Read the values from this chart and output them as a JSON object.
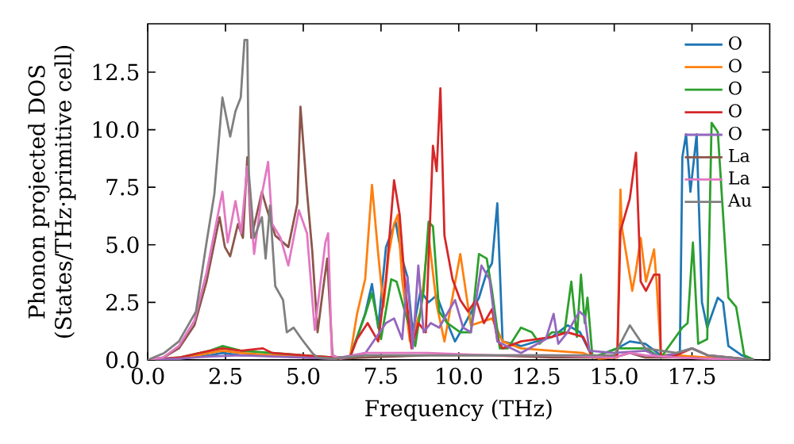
{
  "chart_data": {
    "type": "line",
    "xlabel": "Frequency (THz)",
    "ylabel": "Phonon projected DOS (States/THz·primitive cell)",
    "xlim": [
      0,
      20
    ],
    "ylim": [
      0,
      14.6
    ],
    "xticks": [
      {
        "value": 0,
        "label": "0.0"
      },
      2.5,
      {
        "value": 5,
        "label": "5.0"
      },
      7.5,
      {
        "value": 10,
        "label": "10.0"
      },
      12.5,
      {
        "value": 15,
        "label": "15.0"
      },
      17.5
    ],
    "yticks": [
      {
        "value": 0,
        "label": "0.0"
      },
      2.5,
      {
        "value": 5,
        "label": "5.0"
      },
      7.5,
      {
        "value": 10,
        "label": "10.0"
      },
      12.5
    ],
    "legend": "top right",
    "line_style": "solid",
    "series": [
      {
        "name": "O",
        "color": "#1f77b4",
        "x": [
          0,
          1,
          2,
          2.4,
          3,
          4,
          5,
          5.9,
          6.5,
          6.99,
          7.21,
          7.41,
          7.66,
          7.97,
          8.18,
          8.35,
          8.52,
          8.77,
          9.03,
          9.29,
          9.54,
          9.88,
          10.05,
          10.65,
          10.9,
          11.07,
          11.24,
          11.41,
          12,
          12.5,
          13,
          13.5,
          13.9,
          14.3,
          15.1,
          15.5,
          16,
          16.5,
          17.11,
          17.19,
          17.31,
          17.45,
          17.65,
          17.82,
          17.99,
          18.33,
          18.5,
          18.67,
          19.1,
          19.5
        ],
        "values": [
          0,
          0.05,
          0.2,
          0.3,
          0.2,
          0.2,
          0.1,
          0.05,
          0.1,
          2.0,
          3.3,
          1.4,
          4.9,
          6.0,
          4.4,
          3.6,
          1.2,
          3.0,
          2.5,
          2.8,
          1.9,
          0.8,
          1.2,
          2.7,
          3.8,
          4.2,
          6.8,
          0.8,
          0.6,
          0.8,
          1.0,
          1.5,
          1.2,
          0.1,
          0.5,
          0.8,
          0.7,
          0.2,
          0.25,
          8.8,
          9.8,
          7.3,
          9.8,
          2.5,
          1.4,
          2.7,
          2.5,
          0.6,
          0.2,
          0
        ]
      },
      {
        "name": "O",
        "color": "#ff7f0e",
        "x": [
          0,
          1,
          2,
          2.4,
          3,
          4,
          5,
          6,
          6.5,
          6.73,
          6.99,
          7.21,
          7.41,
          7.58,
          7.75,
          7.92,
          8.04,
          8.18,
          8.43,
          8.77,
          9.03,
          9.29,
          9.54,
          10.05,
          10.39,
          11.07,
          11.41,
          12,
          13,
          14,
          14.5,
          15.1,
          15.2,
          15.24,
          15.58,
          15.7,
          15.85,
          16.02,
          16.28,
          16.36,
          16.5,
          17,
          18,
          19.5
        ],
        "values": [
          0,
          0.05,
          0.3,
          0.4,
          0.3,
          0.2,
          0.1,
          0.05,
          0.1,
          2.0,
          3.5,
          7.6,
          4.6,
          2.3,
          4.6,
          5.9,
          6.3,
          3.5,
          0.8,
          2.1,
          5.4,
          2.4,
          0.8,
          4.6,
          1.5,
          1.8,
          0.8,
          0.5,
          0.4,
          0.3,
          0.05,
          0.1,
          7.4,
          5.8,
          3.0,
          3.9,
          5.3,
          3.4,
          4.8,
          3.4,
          0.2,
          0.2,
          0.1,
          0
        ]
      },
      {
        "name": "O",
        "color": "#2ca02c",
        "x": [
          0,
          1,
          2,
          2.4,
          3,
          4,
          5,
          6,
          6.5,
          7.0,
          7.21,
          7.5,
          7.83,
          8.0,
          8.27,
          8.6,
          8.87,
          9.03,
          9.17,
          9.37,
          9.63,
          10.05,
          10.39,
          10.65,
          10.9,
          11.07,
          11.32,
          11.58,
          12.0,
          12.35,
          12.6,
          13.0,
          13.4,
          13.62,
          13.8,
          13.93,
          14.05,
          14.14,
          14.3,
          15.1,
          16,
          16.5,
          17.19,
          17.36,
          17.53,
          17.7,
          17.99,
          18.13,
          18.33,
          18.67,
          18.92,
          19.18,
          19.5
        ],
        "values": [
          0,
          0.1,
          0.4,
          0.6,
          0.4,
          0.3,
          0.2,
          0.1,
          0.1,
          2.0,
          2.9,
          0.9,
          3.5,
          3.4,
          2.1,
          0.6,
          3.0,
          6.0,
          5.8,
          2.1,
          1.6,
          1.2,
          1.2,
          4.6,
          4.4,
          3.0,
          0.5,
          0.5,
          1.4,
          1.2,
          0.7,
          1.2,
          1.2,
          3.4,
          1.0,
          3.7,
          1.6,
          2.7,
          0.1,
          0.5,
          0.5,
          0.1,
          1.4,
          1.6,
          5.1,
          0.7,
          0.9,
          10.3,
          9.9,
          2.7,
          2.3,
          0.2,
          0
        ]
      },
      {
        "name": "O",
        "color": "#d62728",
        "x": [
          0,
          1,
          2,
          2.4,
          3,
          3.7,
          4,
          5,
          6,
          6.5,
          6.73,
          7.07,
          7.24,
          7.41,
          7.66,
          7.92,
          8.1,
          8.27,
          8.48,
          8.7,
          8.94,
          9.17,
          9.29,
          9.41,
          9.54,
          9.8,
          10.05,
          10.3,
          10.56,
          10.81,
          11.07,
          11.24,
          11.41,
          12,
          12.5,
          13,
          13.5,
          14,
          14.3,
          15.1,
          15.2,
          15.5,
          15.7,
          15.85,
          16.02,
          16.28,
          16.45,
          16.5,
          17,
          17.5,
          18,
          19.5
        ],
        "values": [
          0,
          0.1,
          0.4,
          0.5,
          0.4,
          0.5,
          0.3,
          0.2,
          0.1,
          0.1,
          0.9,
          1.6,
          1.2,
          0.8,
          3.5,
          7.8,
          6.3,
          3.3,
          0.5,
          1.6,
          1.2,
          9.3,
          8.2,
          11.8,
          5.4,
          3.5,
          2.6,
          2.1,
          2.6,
          1.6,
          2.2,
          0.9,
          0.5,
          0.8,
          0.9,
          1.0,
          1.2,
          1.0,
          0.1,
          0.2,
          5.6,
          7.0,
          9.0,
          3.4,
          3.0,
          3.7,
          3.7,
          0.1,
          0.2,
          0.5,
          0.2,
          0
        ]
      },
      {
        "name": "O",
        "color": "#9467bd",
        "x": [
          0,
          1,
          2,
          3,
          4,
          5,
          6,
          7,
          7.66,
          7.92,
          8.18,
          8.35,
          8.52,
          8.7,
          8.87,
          9.1,
          9.37,
          9.88,
          10.14,
          10.39,
          10.73,
          10.99,
          11.24,
          12,
          12.8,
          13.05,
          13.2,
          13.5,
          13.88,
          14.05,
          14.2,
          15,
          16,
          16.5,
          17,
          17.5,
          18,
          19.5
        ],
        "values": [
          0,
          0.05,
          0.15,
          0.2,
          0.15,
          0.1,
          0.05,
          0.3,
          1.6,
          1.8,
          0.9,
          3.6,
          0.5,
          4.1,
          1.2,
          1.6,
          1.4,
          2.6,
          1.4,
          1.2,
          4.1,
          3.5,
          0.8,
          0.3,
          0.9,
          2.0,
          0.7,
          1.2,
          2.1,
          1.9,
          0.4,
          0.3,
          0.4,
          0.1,
          0.3,
          0.5,
          0.2,
          0
        ]
      },
      {
        "name": "La",
        "color": "#8c564b",
        "x": [
          0,
          0.5,
          1,
          1.5,
          1.89,
          2.31,
          2.48,
          2.65,
          2.9,
          3.06,
          3.2,
          3.33,
          3.67,
          3.84,
          4.1,
          4.52,
          4.81,
          4.91,
          5.12,
          5.29,
          5.46,
          5.63,
          5.77,
          5.94,
          6.2,
          7,
          9,
          11,
          13,
          15,
          15.5,
          16,
          17,
          18,
          19.5
        ],
        "values": [
          0,
          0.1,
          0.5,
          1.5,
          3.4,
          6.2,
          4.9,
          4.5,
          5.9,
          5.3,
          8.8,
          5.3,
          7.3,
          6.5,
          5.4,
          4.9,
          6.8,
          11.0,
          7.3,
          4.7,
          1.2,
          3.0,
          4.4,
          0.2,
          0.05,
          0.1,
          0.2,
          0.2,
          0.1,
          0.1,
          0.3,
          0.1,
          0.1,
          0.05,
          0
        ]
      },
      {
        "name": "La",
        "color": "#e377c2",
        "x": [
          0,
          0.5,
          1,
          1.5,
          1.89,
          2.4,
          2.57,
          2.82,
          3.0,
          3.2,
          3.42,
          3.67,
          3.87,
          4.0,
          4.27,
          4.52,
          4.86,
          5.12,
          5.37,
          5.71,
          5.8,
          5.92,
          6.2,
          7,
          9,
          11,
          13,
          15,
          15.5,
          16,
          17,
          18,
          19.5
        ],
        "values": [
          0,
          0.1,
          0.6,
          1.7,
          3.8,
          7.3,
          5.1,
          6.9,
          5.5,
          8.4,
          4.6,
          7.2,
          8.6,
          5.9,
          5.3,
          4.1,
          6.5,
          5.5,
          1.3,
          5.1,
          5.5,
          0.2,
          0.05,
          0.3,
          0.3,
          0.2,
          0.2,
          0.1,
          0.3,
          0.2,
          0.1,
          0.05,
          0
        ]
      },
      {
        "name": "Au",
        "color": "#7f7f7f",
        "x": [
          0,
          0.53,
          1,
          1.55,
          1.89,
          2.14,
          2.4,
          2.65,
          2.82,
          2.99,
          3.11,
          3.2,
          3.25,
          3.42,
          3.67,
          3.79,
          3.93,
          4.1,
          4.35,
          4.47,
          4.69,
          4.95,
          5.29,
          5.46,
          6,
          7,
          9,
          11,
          13,
          15,
          15.5,
          16,
          17,
          17.5,
          18,
          19.5
        ],
        "values": [
          0,
          0.3,
          0.8,
          2.1,
          5.1,
          7.2,
          11.4,
          9.7,
          10.8,
          11.4,
          13.9,
          13.9,
          8.1,
          5.3,
          6.2,
          4.4,
          6.7,
          3.2,
          2.6,
          1.2,
          1.4,
          0.9,
          0.3,
          0.1,
          0.05,
          0.2,
          0.2,
          0.2,
          0.2,
          0.2,
          1.5,
          0.5,
          0.3,
          0.5,
          0.2,
          0
        ]
      }
    ]
  }
}
